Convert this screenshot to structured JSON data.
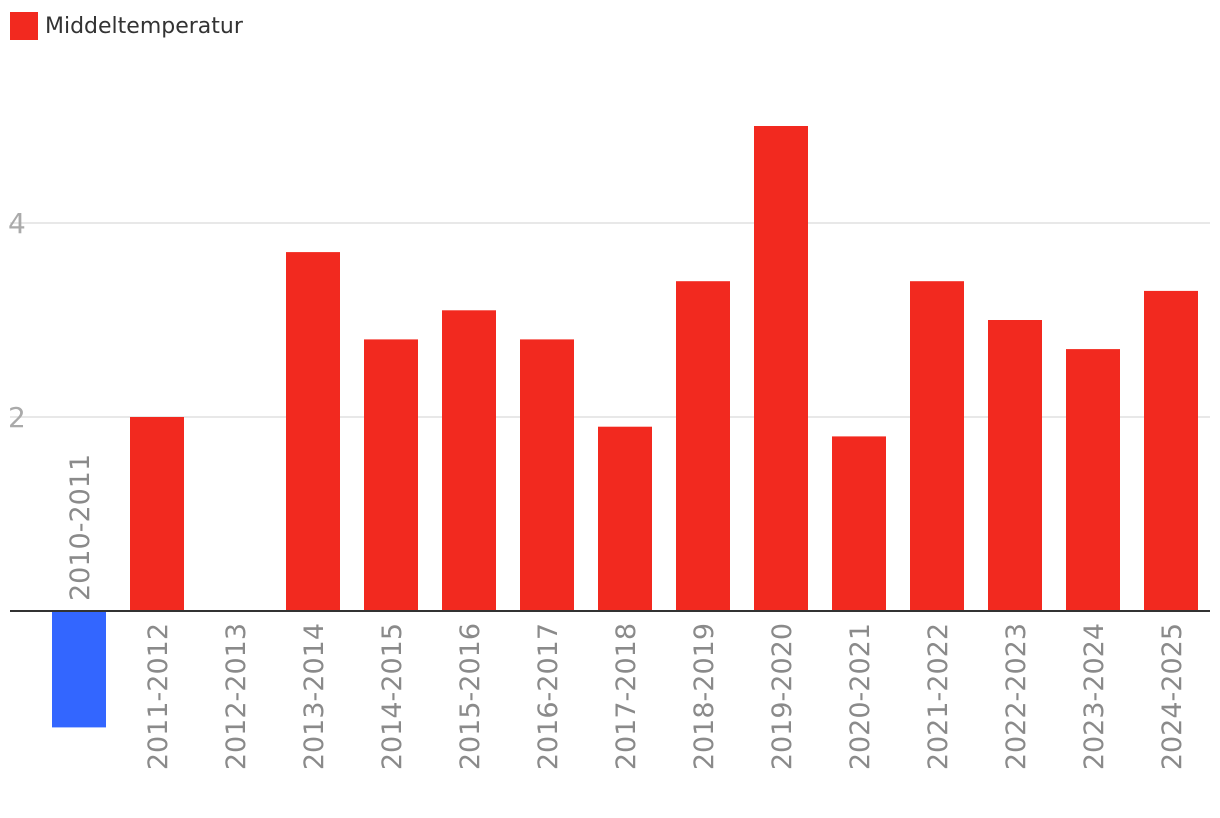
{
  "legend": {
    "label": "Middeltemperatur",
    "color": "#f2291f"
  },
  "chart_data": {
    "type": "bar",
    "categories": [
      "2010-2011",
      "2011-2012",
      "2012-2013",
      "2013-2014",
      "2014-2015",
      "2015-2016",
      "2016-2017",
      "2017-2018",
      "2018-2019",
      "2019-2020",
      "2020-2021",
      "2021-2022",
      "2022-2023",
      "2023-2024",
      "2024-2025"
    ],
    "series": [
      {
        "values": [
          -1.2,
          2.0,
          0.0,
          3.7,
          2.8,
          3.1,
          2.8,
          1.9,
          3.4,
          5.0,
          1.8,
          3.4,
          3.0,
          2.7,
          3.3
        ]
      }
    ],
    "yticks": [
      2,
      4
    ],
    "ylim": [
      -1.7,
      5.7
    ],
    "grid": true,
    "legend_position": "top-left",
    "positive_color": "#f2291f",
    "negative_color": "#3366ff",
    "gridline_color": "#e0e0e0",
    "axis_color": "#333333"
  }
}
